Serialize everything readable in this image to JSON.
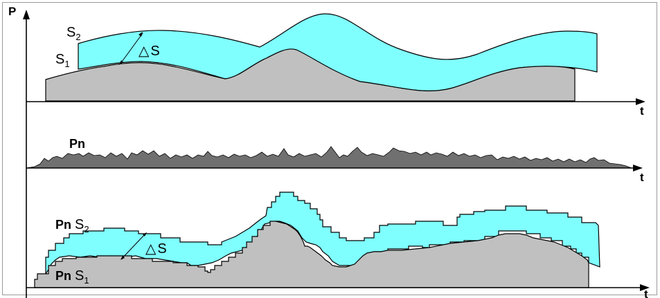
{
  "axes": {
    "y_label": "P",
    "x_label_top": "t",
    "x_label_middle": "t",
    "x_label_bottom": "t"
  },
  "top_panel": {
    "s2_letter": "S",
    "s2_sub": "2",
    "s1_letter": "S",
    "s1_sub": "1",
    "delta_symbol": "△",
    "delta_letter": "S"
  },
  "middle_panel": {
    "pn_label": "Pn"
  },
  "bottom_panel": {
    "pn_s2_prefix": "Pn ",
    "pn_s2_letter": "S",
    "pn_s2_sub": "2",
    "pn_s1_prefix": "Pn ",
    "pn_s1_letter": "S",
    "pn_s1_sub": "1",
    "delta_symbol": "△",
    "delta_letter": "S"
  },
  "colors": {
    "band_fill": "#80ffff",
    "area_fill": "#c0c0c0",
    "noise_fill": "#707070",
    "line": "#000000",
    "frame": "#9a9a9a"
  }
}
